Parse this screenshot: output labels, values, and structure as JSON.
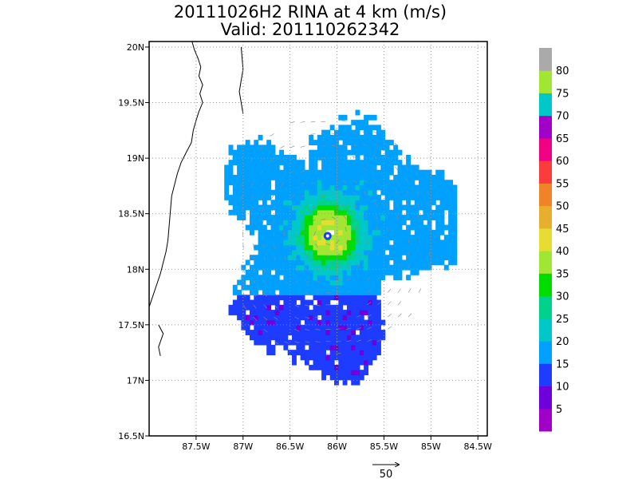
{
  "chart_data": {
    "type": "heatmap",
    "title": "20111026H2 RINA at 4 km (m/s)",
    "subtitle": "Valid: 201110262342",
    "x_ticks": [
      {
        "value": -87.5,
        "label": "87.5W"
      },
      {
        "value": -87.0,
        "label": "87W"
      },
      {
        "value": -86.5,
        "label": "86.5W"
      },
      {
        "value": -86.0,
        "label": "86W"
      },
      {
        "value": -85.5,
        "label": "85.5W"
      },
      {
        "value": -85.0,
        "label": "85W"
      },
      {
        "value": -84.5,
        "label": "84.5W"
      }
    ],
    "y_ticks": [
      {
        "value": 16.5,
        "label": "16.5N"
      },
      {
        "value": 17.0,
        "label": "17N"
      },
      {
        "value": 17.5,
        "label": "17.5N"
      },
      {
        "value": 18.0,
        "label": "18N"
      },
      {
        "value": 18.5,
        "label": "18.5N"
      },
      {
        "value": 19.0,
        "label": "19N"
      },
      {
        "value": 19.5,
        "label": "19.5N"
      },
      {
        "value": 20.0,
        "label": "20N"
      }
    ],
    "xlim": [
      -88.0,
      -84.4
    ],
    "ylim": [
      16.5,
      20.05
    ],
    "grid": true,
    "storm_center": {
      "lon": -86.1,
      "lat": 18.3
    },
    "colorbar": {
      "labels": [
        "5",
        "10",
        "15",
        "20",
        "25",
        "30",
        "35",
        "40",
        "45",
        "50",
        "55",
        "60",
        "65",
        "70",
        "75",
        "80"
      ],
      "colors": [
        "#a000c8",
        "#6e00dc",
        "#1e3cff",
        "#00a0ff",
        "#00c8c8",
        "#00d28c",
        "#00dc00",
        "#a0e632",
        "#e6dc32",
        "#e6af2d",
        "#f08228",
        "#fa3c3c",
        "#f00082",
        "#a000c8",
        "#00c8c8",
        "#a0e632",
        "#aaaaaa"
      ]
    },
    "reference_vector": {
      "label": "50",
      "value": 50
    }
  }
}
